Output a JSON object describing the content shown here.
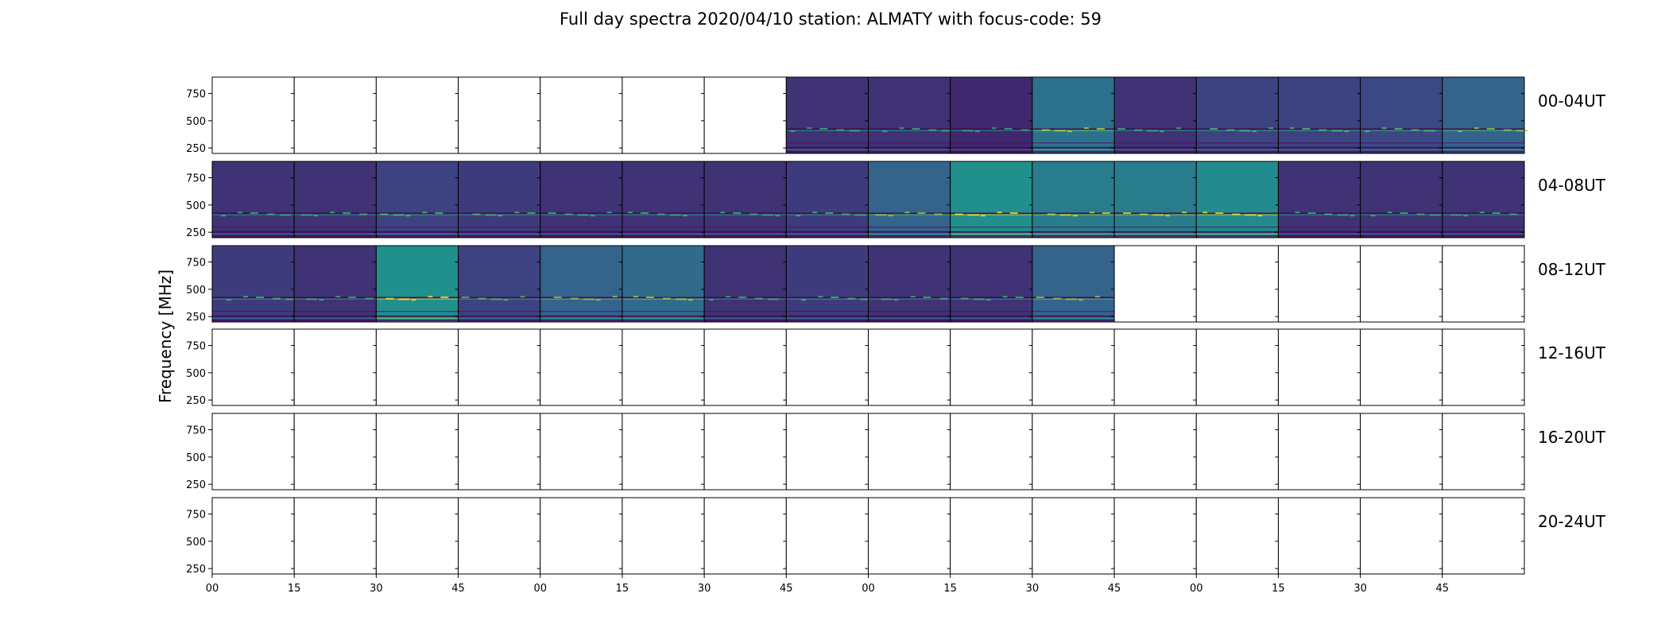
{
  "chart_data": {
    "type": "heatmap",
    "title": "Full day spectra 2020/04/10 station: ALMATY with focus-code: 59",
    "ylabel": "Frequency [MHz]",
    "xlabel": "",
    "ylim": [
      200,
      900
    ],
    "yticks": [
      "750",
      "500",
      "250"
    ],
    "xticks": [
      "00",
      "15",
      "30",
      "45",
      "00",
      "15",
      "30",
      "45",
      "00",
      "15",
      "30",
      "45",
      "00",
      "15",
      "30",
      "45"
    ],
    "rows": [
      {
        "label": "00-04UT",
        "panels": [
          0,
          0,
          0,
          0,
          0,
          0,
          0,
          1,
          1,
          1,
          1,
          1,
          1,
          1,
          1,
          1
        ]
      },
      {
        "label": "04-08UT",
        "panels": [
          1,
          1,
          1,
          1,
          1,
          1,
          1,
          1,
          1,
          1,
          1,
          1,
          1,
          1,
          1,
          1
        ]
      },
      {
        "label": "08-12UT",
        "panels": [
          1,
          1,
          1,
          1,
          1,
          1,
          1,
          1,
          1,
          1,
          1,
          0,
          0,
          0,
          0,
          0
        ]
      },
      {
        "label": "12-16UT",
        "panels": [
          0,
          0,
          0,
          0,
          0,
          0,
          0,
          0,
          0,
          0,
          0,
          0,
          0,
          0,
          0,
          0
        ]
      },
      {
        "label": "16-20UT",
        "panels": [
          0,
          0,
          0,
          0,
          0,
          0,
          0,
          0,
          0,
          0,
          0,
          0,
          0,
          0,
          0,
          0
        ]
      },
      {
        "label": "20-24UT",
        "panels": [
          0,
          0,
          0,
          0,
          0,
          0,
          0,
          0,
          0,
          0,
          0,
          0,
          0,
          0,
          0,
          0
        ]
      }
    ],
    "panel_intensity": [
      [
        0,
        0,
        0,
        0,
        0,
        0,
        0,
        0.15,
        0.15,
        0.12,
        0.38,
        0.15,
        0.2,
        0.2,
        0.22,
        0.32
      ],
      [
        0.15,
        0.15,
        0.2,
        0.18,
        0.15,
        0.15,
        0.15,
        0.18,
        0.32,
        0.5,
        0.42,
        0.42,
        0.48,
        0.15,
        0.15,
        0.15
      ],
      [
        0.18,
        0.15,
        0.5,
        0.2,
        0.32,
        0.35,
        0.15,
        0.18,
        0.15,
        0.15,
        0.32,
        0,
        0,
        0,
        0,
        0
      ]
    ],
    "colormap": [
      "#440154",
      "#3b528b",
      "#21908d",
      "#5dc963",
      "#fde725"
    ],
    "grid": false
  }
}
